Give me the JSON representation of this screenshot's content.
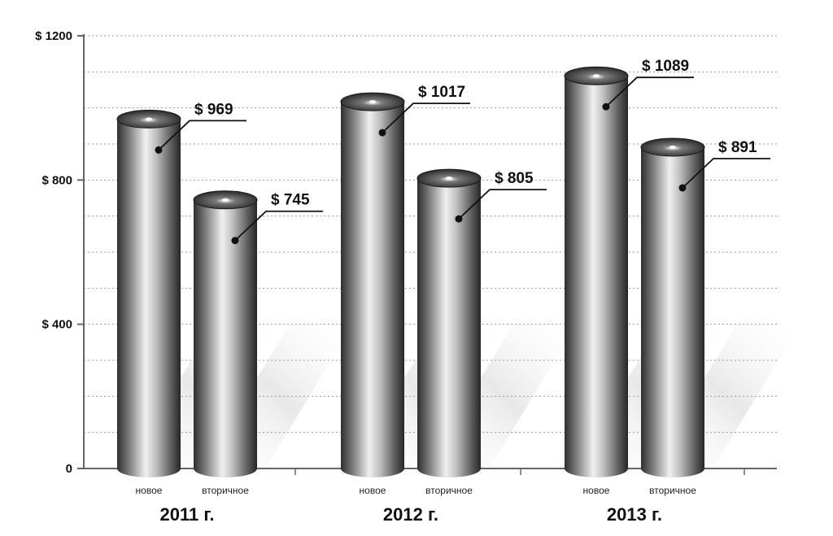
{
  "chart_data": {
    "type": "bar",
    "categories": [
      "2011 г.",
      "2012 г.",
      "2013 г."
    ],
    "series": [
      {
        "name": "новое",
        "values": [
          969,
          1017,
          1089
        ]
      },
      {
        "name": "вторичное",
        "values": [
          745,
          805,
          891
        ]
      }
    ],
    "value_labels": [
      [
        "$ 969",
        "$ 745"
      ],
      [
        "$ 1017",
        "$ 805"
      ],
      [
        "$ 1089",
        "$ 891"
      ]
    ],
    "y_ticks": [
      {
        "value": 0,
        "label": "0"
      },
      {
        "value": 400,
        "label": "$ 400"
      },
      {
        "value": 800,
        "label": "$ 800"
      },
      {
        "value": 1200,
        "label": "$ 1200"
      }
    ],
    "ylim": [
      0,
      1200
    ],
    "grid": true,
    "colors": {
      "bar_light": "#f2f2f2",
      "bar_mid": "#a6a6a6",
      "bar_dark": "#303030",
      "grid": "#999999"
    }
  }
}
